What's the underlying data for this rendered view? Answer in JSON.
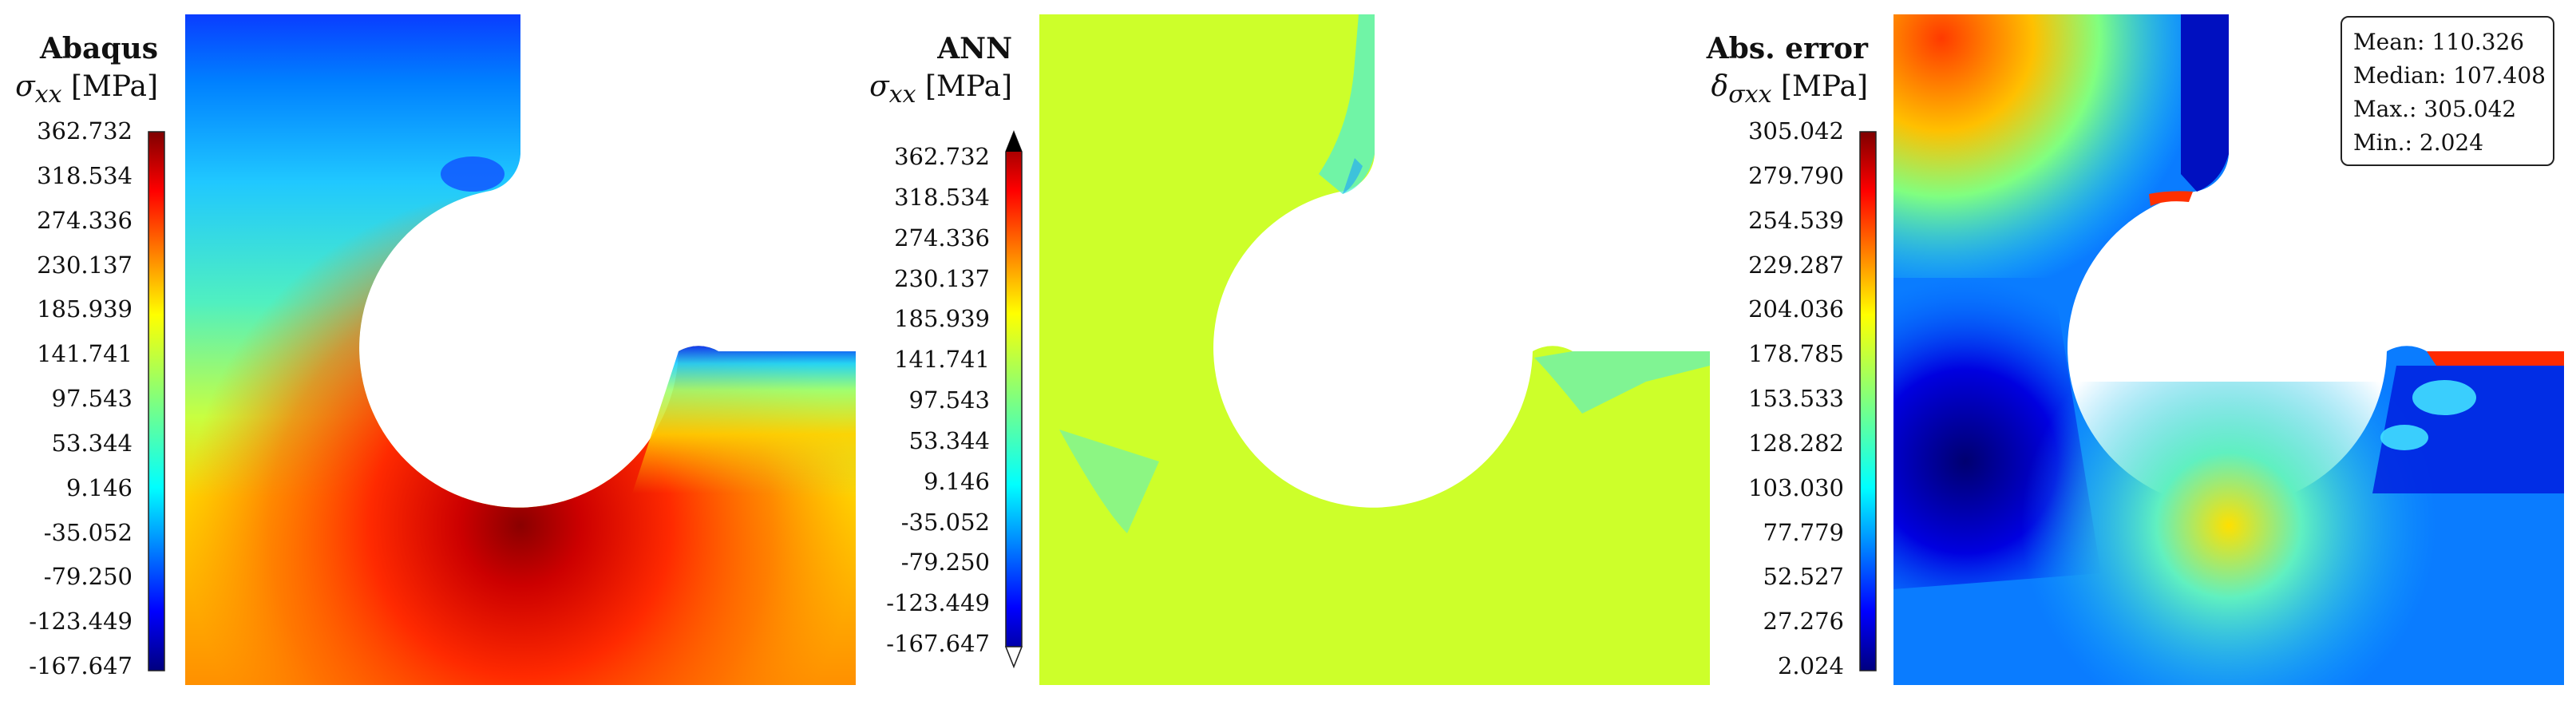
{
  "chart_data": [
    {
      "type": "heatmap",
      "title": "Abaqus",
      "quantity_symbol": "σ",
      "quantity_subscript": "xx",
      "unit": "[MPa]",
      "colormap": "jet",
      "colorbar": {
        "min": -167.647,
        "max": 362.732,
        "tick_labels": [
          "362.732",
          "318.534",
          "274.336",
          "230.137",
          "185.939",
          "141.741",
          "97.543",
          "53.344",
          "9.146",
          "-35.052",
          "-79.250",
          "-123.449",
          "-167.647"
        ]
      }
    },
    {
      "type": "heatmap",
      "title": "ANN",
      "quantity_symbol": "σ",
      "quantity_subscript": "xx",
      "unit": "[MPa]",
      "colormap": "jet",
      "colorbar": {
        "min": -167.647,
        "max": 362.732,
        "extend": "both",
        "tick_labels": [
          "362.732",
          "318.534",
          "274.336",
          "230.137",
          "185.939",
          "141.741",
          "97.543",
          "53.344",
          "9.146",
          "-35.052",
          "-79.250",
          "-123.449",
          "-167.647"
        ]
      }
    },
    {
      "type": "heatmap",
      "title": "Abs. error",
      "quantity_symbol": "δ",
      "quantity_subscript": "σxx",
      "unit": "[MPa]",
      "colormap": "jet",
      "colorbar": {
        "min": 2.024,
        "max": 305.042,
        "tick_labels": [
          "305.042",
          "279.790",
          "254.539",
          "229.287",
          "204.036",
          "178.785",
          "153.533",
          "128.282",
          "103.030",
          "77.779",
          "52.527",
          "27.276",
          "2.024"
        ]
      },
      "stats": [
        {
          "label": "Mean:",
          "value": "110.326"
        },
        {
          "label": "Median:",
          "value": "107.408"
        },
        {
          "label": "Max.:",
          "value": "305.042"
        },
        {
          "label": "Min.:",
          "value": "2.024"
        }
      ]
    }
  ],
  "colors": {
    "jet": [
      "#00007f",
      "#0000ff",
      "#007fff",
      "#00ffff",
      "#7fff7f",
      "#ffff00",
      "#ff7f00",
      "#ff0000",
      "#7f0000"
    ],
    "ann_uniform": "#cdff2a",
    "background": "#ffffff"
  }
}
